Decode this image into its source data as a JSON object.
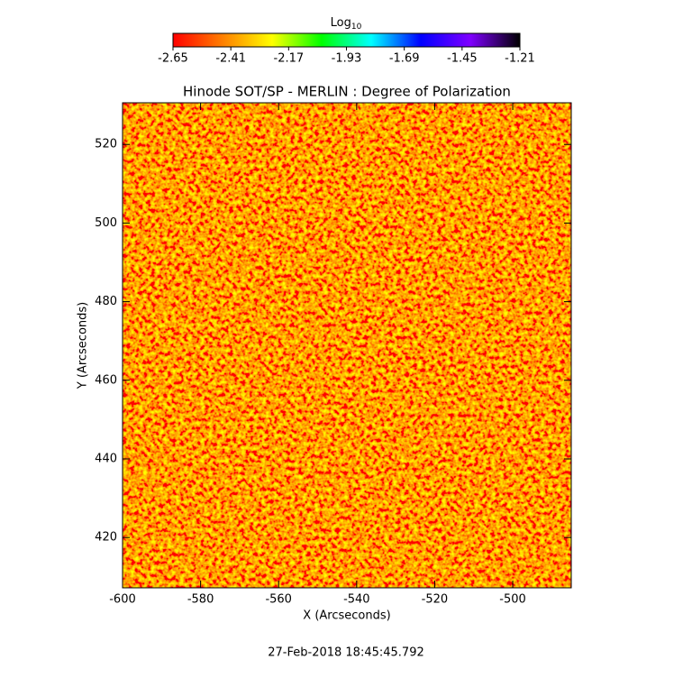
{
  "chart_data": {
    "type": "heatmap",
    "title": "Hinode SOT/SP - MERLIN : Degree of Polarization",
    "x_label": "X (Arcseconds)",
    "y_label": "Y (Arcseconds)",
    "xlim": [
      -600,
      -485
    ],
    "xticks": [
      -600,
      -580,
      -560,
      -540,
      -520,
      -500
    ],
    "ylim": [
      407.2,
      530.6
    ],
    "yticks": [
      420,
      440,
      460,
      480,
      500,
      520
    ],
    "colorbar": {
      "label": {
        "base": "Log",
        "subscript": "10"
      },
      "lim": [
        -2.65,
        -1.21
      ],
      "ticks": [
        -2.65,
        -2.41,
        -2.17,
        -1.93,
        -1.69,
        -1.45,
        -1.21
      ],
      "colormap": [
        "#ff0000",
        "#ff7f00",
        "#ffff00",
        "#00ff00",
        "#00ffff",
        "#0000ff",
        "#7f00ff",
        "#000000"
      ]
    },
    "timestamp": "27-Feb-2018 18:45:45.792"
  }
}
